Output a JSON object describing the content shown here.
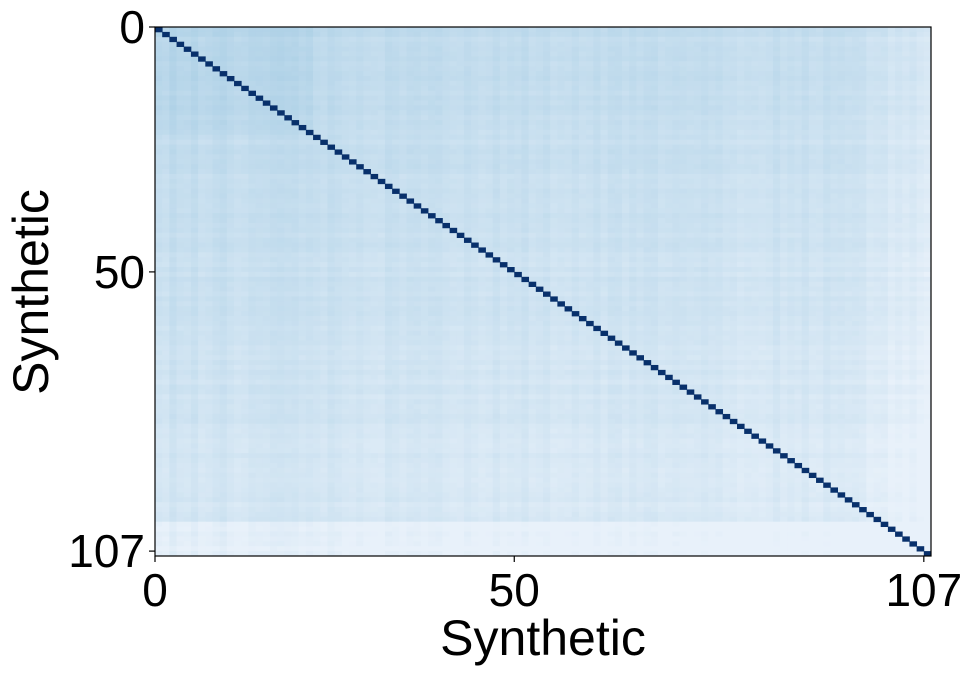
{
  "chart_data": {
    "type": "heatmap",
    "title": "",
    "xlabel": "Synthetic",
    "ylabel": "Synthetic",
    "n": 108,
    "xlim": [
      0,
      107
    ],
    "ylim": [
      0,
      107
    ],
    "x_ticks": [
      {
        "value": 0,
        "label": "0"
      },
      {
        "value": 50,
        "label": "50"
      },
      {
        "value": 107,
        "label": "107"
      }
    ],
    "y_ticks": [
      {
        "value": 0,
        "label": "0"
      },
      {
        "value": 50,
        "label": "50"
      },
      {
        "value": 107,
        "label": "107"
      }
    ],
    "colormap": "Blues",
    "diagonal_value": 1.0,
    "off_diagonal_range": [
      0.15,
      0.35
    ],
    "colors": {
      "diagonal": "#08306b",
      "high": "#b0d2e7",
      "low": "#e8f1fa"
    },
    "grid": false,
    "legend": "none"
  }
}
